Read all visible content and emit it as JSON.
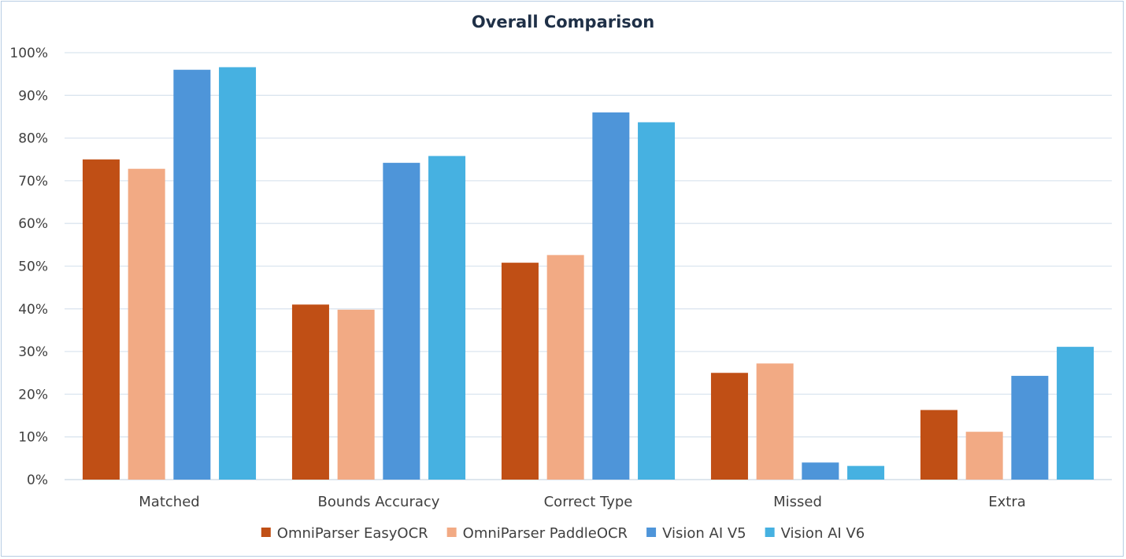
{
  "chart_data": {
    "type": "bar",
    "title": "Overall Comparison",
    "xlabel": "",
    "ylabel": "",
    "ylim": [
      0,
      100
    ],
    "y_ticks": [
      "0%",
      "10%",
      "20%",
      "30%",
      "40%",
      "50%",
      "60%",
      "70%",
      "80%",
      "90%",
      "100%"
    ],
    "categories": [
      "Matched",
      "Bounds Accuracy",
      "Correct Type",
      "Missed",
      "Extra"
    ],
    "series": [
      {
        "name": "OmniParser EasyOCR",
        "color": "#c04f15",
        "values": [
          75,
          41,
          50.8,
          25,
          16.3
        ]
      },
      {
        "name": "OmniParser PaddleOCR",
        "color": "#f2aa84",
        "values": [
          72.8,
          39.8,
          52.6,
          27.2,
          11.2
        ]
      },
      {
        "name": "Vision AI V5",
        "color": "#4e95d9",
        "values": [
          96,
          74.2,
          86,
          4,
          24.3
        ]
      },
      {
        "name": "Vision AI V6",
        "color": "#46b1e1",
        "values": [
          96.6,
          75.8,
          83.7,
          3.2,
          31.1
        ]
      }
    ],
    "grid": true,
    "legend_position": "bottom"
  }
}
